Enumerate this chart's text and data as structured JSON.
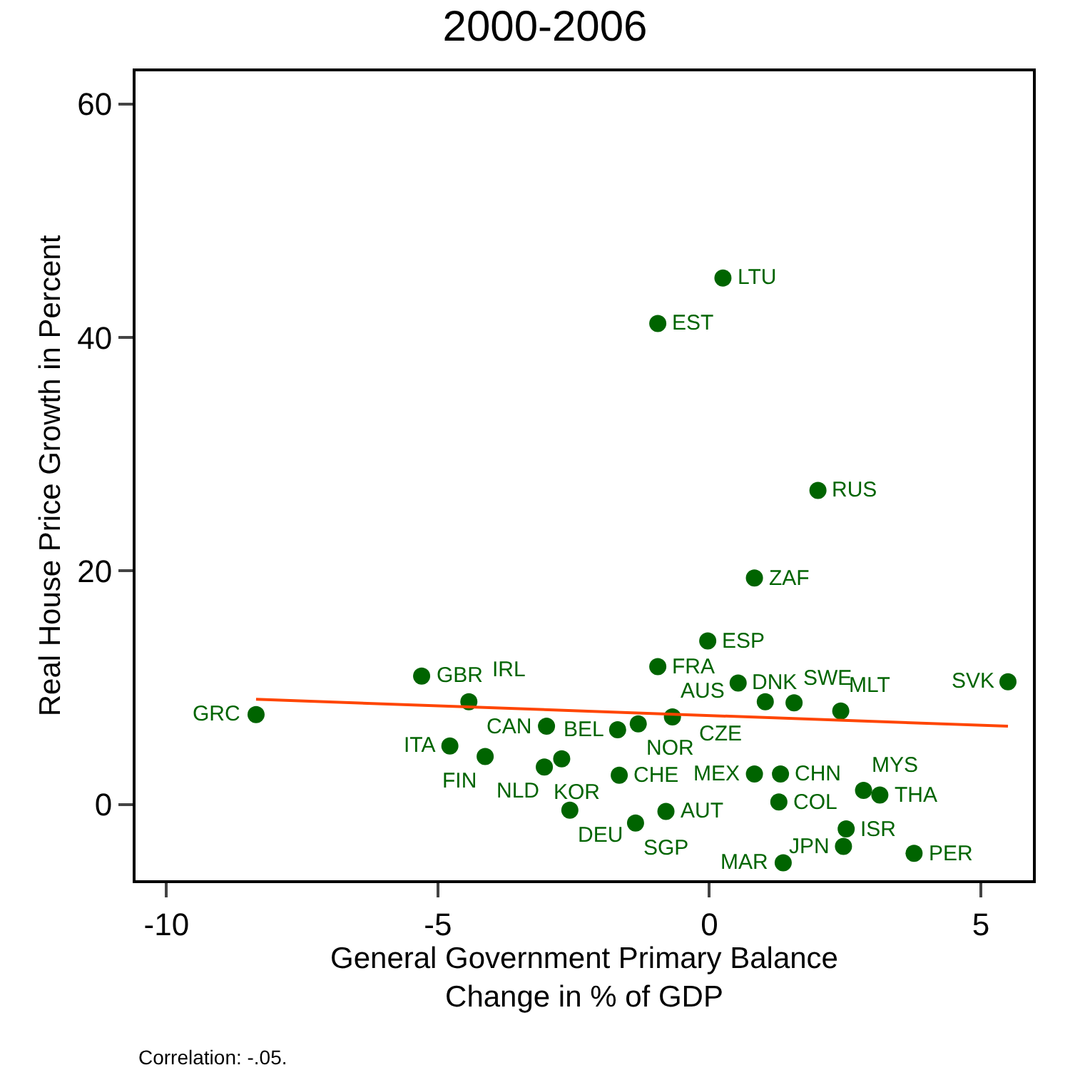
{
  "chart_data": {
    "type": "scatter",
    "title": "2000-2006",
    "xlabel": "General Government Primary Balance\nChange in % of GDP",
    "ylabel": "Real House Price Growth in Percent",
    "xlim": [
      -10.57,
      5.96
    ],
    "xticks": [
      -10,
      -5,
      0,
      5
    ],
    "ylim": [
      -6.5,
      62.8
    ],
    "yticks": [
      0,
      20,
      40,
      60
    ],
    "marker": "circle",
    "series": [
      {
        "color": "#006400",
        "x": [
          0.25,
          -0.95,
          2.0,
          0.83,
          -0.03,
          -0.95,
          -5.3,
          0.53,
          5.5,
          1.03,
          1.56,
          2.42,
          -4.43,
          -0.68,
          -1.69,
          -1.31,
          -3.0,
          -8.35,
          -4.78,
          -4.13,
          -2.72,
          -3.04,
          -1.66,
          -2.57,
          -0.8,
          -1.36,
          0.83,
          1.31,
          1.28,
          2.84,
          3.14,
          2.52,
          2.47,
          3.77,
          1.36
        ],
        "values": [
          45.1,
          41.2,
          26.9,
          19.4,
          14.0,
          11.8,
          11.0,
          10.4,
          10.5,
          8.8,
          8.7,
          8.0,
          8.8,
          7.5,
          6.4,
          6.9,
          6.7,
          7.7,
          5.0,
          4.1,
          3.9,
          3.2,
          2.5,
          -0.5,
          -0.6,
          -1.6,
          2.6,
          2.6,
          0.2,
          1.2,
          0.8,
          -2.1,
          -3.6,
          -4.2,
          -5.0
        ]
      },
      {
        "type": "line",
        "marker": "none",
        "color": "#ff4500",
        "x": [
          -8.35,
          5.5
        ],
        "values": [
          9.0,
          6.7
        ]
      }
    ],
    "annotations": [
      {
        "text": "LTU",
        "x": 0.25,
        "y": 45.1
      },
      {
        "text": "EST",
        "x": -0.95,
        "y": 41.2
      },
      {
        "text": "RUS",
        "x": 2.0,
        "y": 26.9
      },
      {
        "text": "ZAF",
        "x": 0.83,
        "y": 19.4
      },
      {
        "text": "ESP",
        "x": -0.03,
        "y": 14.0
      },
      {
        "text": "FRA",
        "x": -0.95,
        "y": 11.8
      },
      {
        "text": "GBR",
        "x": -5.3,
        "y": 11.0
      },
      {
        "text": "DNK",
        "x": 0.53,
        "y": 10.4
      },
      {
        "text": "SVK",
        "x": 5.5,
        "y": 10.5
      },
      {
        "text": "CZE",
        "x": 1.03,
        "y": 8.8
      },
      {
        "text": "SWE",
        "x": 1.56,
        "y": 8.7
      },
      {
        "text": "MLT",
        "x": 2.42,
        "y": 8.0
      },
      {
        "text": "IRL",
        "x": -4.43,
        "y": 8.8
      },
      {
        "text": "AUS",
        "x": -0.68,
        "y": 7.5
      },
      {
        "text": "BEL",
        "x": -1.69,
        "y": 6.4
      },
      {
        "text": "NOR",
        "x": -1.31,
        "y": 6.9
      },
      {
        "text": "CAN",
        "x": -3.0,
        "y": 6.7
      },
      {
        "text": "GRC",
        "x": -8.35,
        "y": 7.7
      },
      {
        "text": "ITA",
        "x": -4.78,
        "y": 5.0
      },
      {
        "text": "FIN",
        "x": -4.13,
        "y": 4.1
      },
      {
        "text": "NLD",
        "x": -2.72,
        "y": 3.9
      },
      {
        "text": "KOR",
        "x": -3.04,
        "y": 3.2
      },
      {
        "text": "CHE",
        "x": -1.66,
        "y": 2.5
      },
      {
        "text": "DEU",
        "x": -2.57,
        "y": -0.5
      },
      {
        "text": "AUT",
        "x": -0.8,
        "y": -0.6
      },
      {
        "text": "SGP",
        "x": -1.36,
        "y": -1.6
      },
      {
        "text": "MEX",
        "x": 0.83,
        "y": 2.6
      },
      {
        "text": "CHN",
        "x": 1.31,
        "y": 2.6
      },
      {
        "text": "COL",
        "x": 1.28,
        "y": 0.2
      },
      {
        "text": "MYS",
        "x": 2.84,
        "y": 1.2
      },
      {
        "text": "THA",
        "x": 3.14,
        "y": 0.8
      },
      {
        "text": "ISR",
        "x": 2.52,
        "y": -2.1
      },
      {
        "text": "JPN",
        "x": 2.47,
        "y": -3.6
      },
      {
        "text": "PER",
        "x": 3.77,
        "y": -4.2
      },
      {
        "text": "MAR",
        "x": 1.36,
        "y": -5.0
      },
      "Correlation: -.05."
    ]
  }
}
